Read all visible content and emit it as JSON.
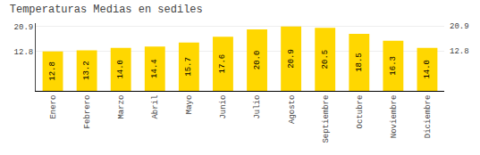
{
  "chart_data": {
    "type": "bar",
    "title": "Temperaturas Medias en sediles",
    "categories": [
      "Enero",
      "Febrero",
      "Marzo",
      "Abril",
      "Mayo",
      "Junio",
      "Julio",
      "Agosto",
      "Septiembre",
      "Octubre",
      "Noviembre",
      "Diciembre"
    ],
    "values": [
      12.8,
      13.2,
      14.0,
      14.4,
      15.7,
      17.6,
      20.0,
      20.9,
      20.5,
      18.5,
      16.3,
      14.0
    ],
    "value_labels": [
      "12.8",
      "13.2",
      "14.0",
      "14.4",
      "15.7",
      "17.6",
      "20.0",
      "20.9",
      "20.5",
      "18.5",
      "16.3",
      "14.0"
    ],
    "color": "#FFD700",
    "ylim": [
      0,
      22
    ],
    "yticks": [
      12.8,
      20.9
    ],
    "grid": true,
    "data_labels": true
  }
}
